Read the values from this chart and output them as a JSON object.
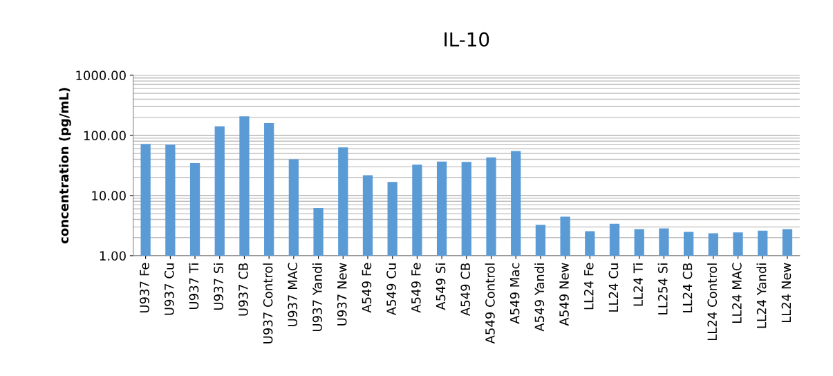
{
  "chart_data": {
    "type": "bar",
    "title": "IL-10",
    "ylabel": "concentration (pg/mL)",
    "categories": [
      "U937 Fe",
      "U937 Cu",
      "U937 Ti",
      "U937 Si",
      "U937 CB",
      "U937 Control",
      "U937 MAC",
      "U937 Yandi",
      "U937 New",
      "A549 Fe",
      "A549 Cu",
      "A549 Fe",
      "A549 Si",
      "A549 CB",
      "A549 Control",
      "A549 Mac",
      "A549 Yandi",
      "A549 New",
      "LL24 Fe",
      "LL24 Cu",
      "LL24 Ti",
      "LL254 Si",
      "LL24 CB",
      "LL24 Control",
      "LL24 MAC",
      "LL24 Yandi",
      "LL24 New"
    ],
    "values": [
      72,
      70,
      34.6,
      141,
      208,
      160,
      40,
      6.2,
      63,
      21.7,
      16.8,
      32.5,
      36.8,
      36.2,
      43,
      55,
      3.27,
      4.45,
      2.55,
      3.39,
      2.76,
      2.84,
      2.49,
      2.36,
      2.44,
      2.6,
      2.76
    ],
    "color": "#5b9bd5",
    "log": "y",
    "ylim": [
      1,
      1000
    ],
    "yticks": [
      {
        "value": 1,
        "label": "1.00"
      },
      {
        "value": 10,
        "label": "10.00"
      },
      {
        "value": 100,
        "label": "100.00"
      },
      {
        "value": 1000,
        "label": "1000.00"
      }
    ],
    "grid": "y"
  }
}
